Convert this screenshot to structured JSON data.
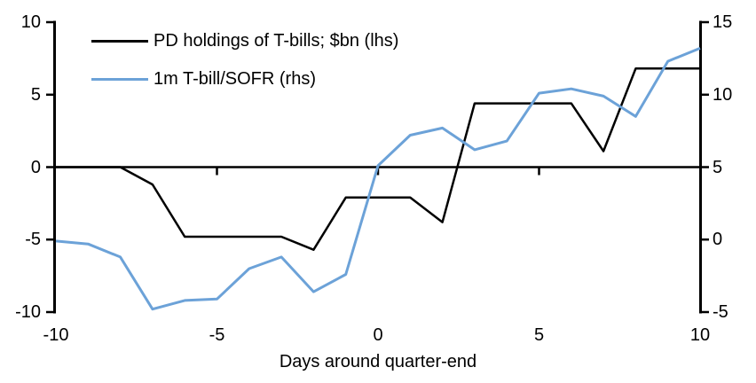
{
  "chart_data": {
    "type": "line",
    "title": "",
    "xlabel": "Days around quarter-end",
    "ylabel_left": "",
    "ylabel_right": "",
    "grid": false,
    "legend_position": "top-left",
    "x": [
      -10,
      -9,
      -8,
      -7,
      -6,
      -5,
      -4,
      -3,
      -2,
      -1,
      0,
      1,
      2,
      3,
      4,
      5,
      6,
      7,
      8,
      9,
      10
    ],
    "series": [
      {
        "name": "PD holdings of T-bills; $bn (lhs)",
        "axis": "left",
        "color": "#000000",
        "stroke_width": 2.5,
        "values": [
          0,
          0,
          0,
          -1.2,
          -4.8,
          -4.8,
          -4.8,
          -4.8,
          -5.7,
          -2.1,
          -2.1,
          -2.1,
          -3.8,
          4.4,
          4.4,
          4.4,
          4.4,
          1.1,
          6.8,
          6.8,
          6.8
        ]
      },
      {
        "name": "1m T-bill/SOFR (rhs)",
        "axis": "right",
        "color": "#6CA2D8",
        "stroke_width": 3,
        "values": [
          -0.1,
          -0.3,
          -1.2,
          -4.8,
          -4.2,
          -4.1,
          -2.0,
          -1.2,
          -3.6,
          -2.4,
          5.1,
          7.2,
          7.7,
          6.2,
          6.8,
          10.1,
          10.4,
          9.9,
          8.5,
          12.3,
          13.2
        ]
      }
    ],
    "left_axis": {
      "range": [
        -10,
        10
      ],
      "ticks": [
        "10",
        "5",
        "0",
        "-5",
        "-10"
      ]
    },
    "right_axis": {
      "range": [
        -5,
        15
      ],
      "ticks": [
        "15",
        "10",
        "5",
        "0",
        "-5"
      ]
    },
    "x_axis": {
      "range": [
        -10,
        10
      ],
      "ticks": [
        "-10",
        "-5",
        "0",
        "5",
        "10"
      ]
    }
  }
}
